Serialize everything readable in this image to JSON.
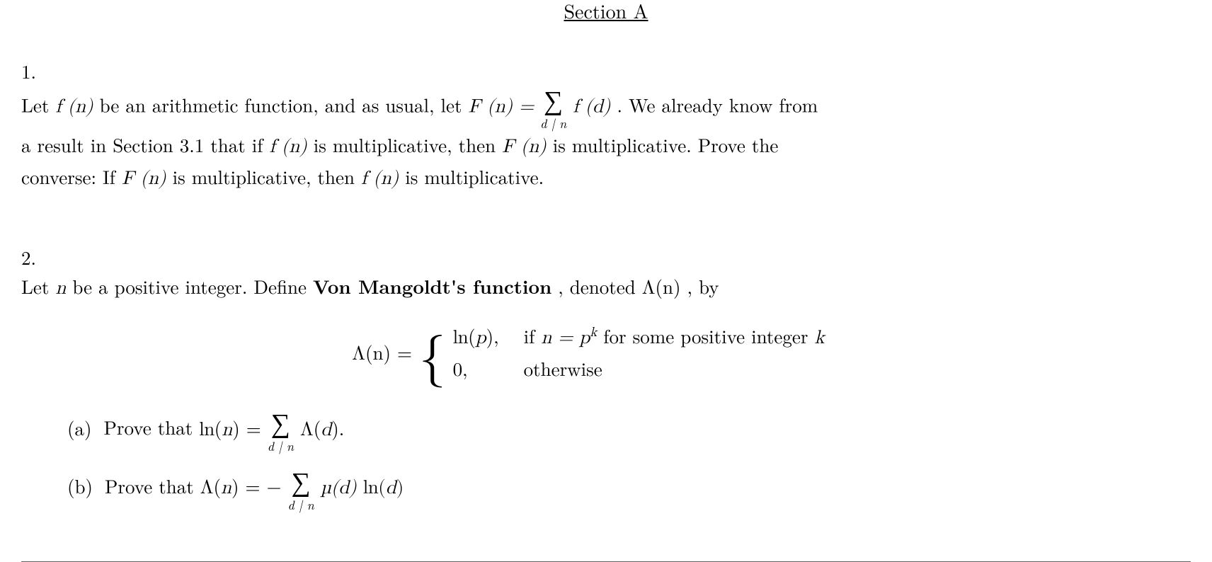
{
  "header": {
    "title": "Section A"
  },
  "problems": {
    "p1": {
      "number": "1.",
      "text_parts": {
        "a": "Let ",
        "b": " be an arithmetic function, and as usual, let ",
        "c": ". We already know from",
        "d": "a result in Section 3.1 that if ",
        "e": " is multiplicative, then ",
        "f": " is multiplicative. Prove the",
        "g": "converse: If ",
        "h": " is multiplicative, then ",
        "i": " is multiplicative."
      },
      "math": {
        "fn": "f (n)",
        "Fn_eq": "F (n) = ",
        "summand": "f (d)",
        "sum_limit": "d | n",
        "Fn": "F (n)"
      }
    },
    "p2": {
      "number": "2.",
      "text_parts": {
        "a": "Let ",
        "b": " be a positive integer. Define ",
        "c": "Von Mangoldt's function",
        "d": ", denoted ",
        "e": ", by"
      },
      "math": {
        "n": "n",
        "Lambda_n": "Λ(n)",
        "def_lhs": "Λ(n) = ",
        "case1_val": "ln(p),",
        "case1_cond_a": "if ",
        "case1_cond_b": "n = p",
        "case1_cond_c": "k",
        "case1_cond_d": " for some positive integer ",
        "case1_cond_e": "k",
        "case2_val": "0,",
        "case2_cond": "otherwise"
      },
      "sub_a": {
        "label": "(a)",
        "text": " Prove that ",
        "lhs": "ln(n) = ",
        "summand": "Λ(d).",
        "sum_limit": "d | n"
      },
      "sub_b": {
        "label": "(b)",
        "text": " Prove that ",
        "lhs": "Λ(n) = − ",
        "summand": "µ(d) ln(d)",
        "sum_limit": "d | n"
      }
    }
  },
  "style": {
    "body_font_size": 27,
    "body_color": "#000000",
    "background_color": "#ffffff",
    "hr_color": "#606060"
  }
}
